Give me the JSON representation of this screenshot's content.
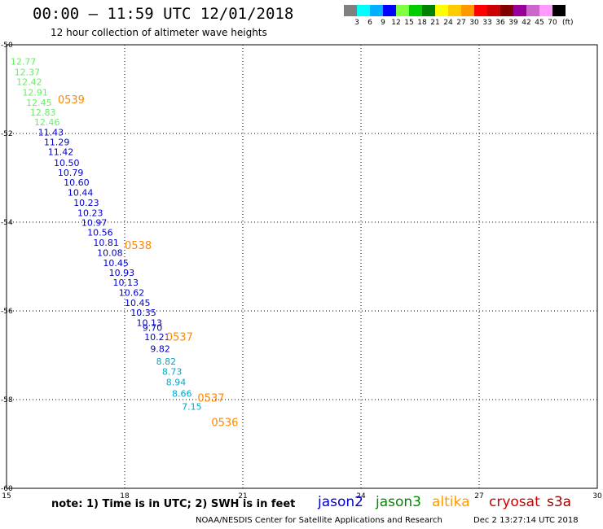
{
  "header": {
    "title": "00:00 – 11:59 UTC 12/01/2018",
    "subtitle": "12 hour collection of altimeter wave heights"
  },
  "legend": {
    "colors": [
      "#808080",
      "#00ffff",
      "#00b0ff",
      "#0000ff",
      "#80ff40",
      "#00cc00",
      "#008000",
      "#ffff00",
      "#ffcc00",
      "#ff9900",
      "#ff0000",
      "#cc0000",
      "#800000",
      "#990099",
      "#cc66cc",
      "#ff99ff",
      "#000000"
    ],
    "labels": [
      "3",
      "6",
      "9",
      "12",
      "15",
      "18",
      "21",
      "24",
      "27",
      "30",
      "33",
      "36",
      "39",
      "42",
      "45",
      "70"
    ],
    "unit": "(ft)"
  },
  "map": {
    "lon_ticks": [
      "15",
      "18",
      "21",
      "24",
      "27",
      "30"
    ],
    "lat_ticks": [
      "-50",
      "-52",
      "-54",
      "-56",
      "-58",
      "-60"
    ],
    "lon_range": [
      15,
      30
    ],
    "lat_range": [
      -60,
      -50
    ]
  },
  "observations": [
    {
      "lon": 15.1,
      "lat": -50.45,
      "text": "12.77",
      "color": "#66ee66"
    },
    {
      "lon": 15.2,
      "lat": -50.69,
      "text": "12.37",
      "color": "#66ee66"
    },
    {
      "lon": 15.25,
      "lat": -50.91,
      "text": "12.42",
      "color": "#66ee66"
    },
    {
      "lon": 15.4,
      "lat": -51.15,
      "text": "12.91",
      "color": "#66ee66"
    },
    {
      "lon": 15.5,
      "lat": -51.38,
      "text": "12.45",
      "color": "#66ee66"
    },
    {
      "lon": 15.6,
      "lat": -51.6,
      "text": "12.83",
      "color": "#66ee66"
    },
    {
      "lon": 15.7,
      "lat": -51.82,
      "text": "12.46",
      "color": "#66ee66"
    },
    {
      "lon": 15.8,
      "lat": -52.05,
      "text": "11.43",
      "color": "#0000cc"
    },
    {
      "lon": 15.95,
      "lat": -52.27,
      "text": "11.29",
      "color": "#0000cc"
    },
    {
      "lon": 16.05,
      "lat": -52.49,
      "text": "11.42",
      "color": "#0000cc"
    },
    {
      "lon": 16.2,
      "lat": -52.73,
      "text": "10.50",
      "color": "#0000cc"
    },
    {
      "lon": 16.3,
      "lat": -52.95,
      "text": "10.79",
      "color": "#0000cc"
    },
    {
      "lon": 16.45,
      "lat": -53.17,
      "text": "10.60",
      "color": "#0000cc"
    },
    {
      "lon": 16.55,
      "lat": -53.4,
      "text": "10.44",
      "color": "#0000cc"
    },
    {
      "lon": 16.7,
      "lat": -53.63,
      "text": "10.23",
      "color": "#0000cc"
    },
    {
      "lon": 16.8,
      "lat": -53.86,
      "text": "10.23",
      "color": "#0000cc"
    },
    {
      "lon": 16.9,
      "lat": -54.08,
      "text": "10.97",
      "color": "#0000cc"
    },
    {
      "lon": 17.05,
      "lat": -54.3,
      "text": "10.56",
      "color": "#0000cc"
    },
    {
      "lon": 17.2,
      "lat": -54.53,
      "text": "10.81",
      "color": "#0000cc"
    },
    {
      "lon": 17.3,
      "lat": -54.76,
      "text": "10.08",
      "color": "#0000cc"
    },
    {
      "lon": 17.45,
      "lat": -54.99,
      "text": "10.45",
      "color": "#0000cc"
    },
    {
      "lon": 17.6,
      "lat": -55.21,
      "text": "10.93",
      "color": "#0000cc"
    },
    {
      "lon": 17.7,
      "lat": -55.43,
      "text": "10.13",
      "color": "#0000cc"
    },
    {
      "lon": 17.85,
      "lat": -55.66,
      "text": "10.62",
      "color": "#0000cc"
    },
    {
      "lon": 18.0,
      "lat": -55.89,
      "text": "10.45",
      "color": "#0000cc"
    },
    {
      "lon": 18.15,
      "lat": -56.11,
      "text": "10.35",
      "color": "#0000cc"
    },
    {
      "lon": 18.3,
      "lat": -56.34,
      "text": "10.13",
      "color": "#0000cc"
    },
    {
      "lon": 18.45,
      "lat": -56.45,
      "text": "9.70",
      "color": "#0000cc"
    },
    {
      "lon": 18.5,
      "lat": -56.66,
      "text": "10.21",
      "color": "#0000cc"
    },
    {
      "lon": 18.65,
      "lat": -56.93,
      "text": "9.82",
      "color": "#0000cc"
    },
    {
      "lon": 18.8,
      "lat": -57.21,
      "text": "8.82",
      "color": "#00aacc"
    },
    {
      "lon": 18.95,
      "lat": -57.44,
      "text": "8.73",
      "color": "#00aacc"
    },
    {
      "lon": 19.05,
      "lat": -57.68,
      "text": "8.94",
      "color": "#00aacc"
    },
    {
      "lon": 19.2,
      "lat": -57.94,
      "text": "8.66",
      "color": "#00aacc"
    },
    {
      "lon": 19.45,
      "lat": -58.23,
      "text": "7.15",
      "color": "#00aacc"
    }
  ],
  "time_labels": [
    {
      "lon": 16.3,
      "lat": -51.32,
      "text": "0539"
    },
    {
      "lon": 18.0,
      "lat": -54.61,
      "text": "0538"
    },
    {
      "lon": 19.05,
      "lat": -56.67,
      "text": "0537"
    },
    {
      "lon": 19.85,
      "lat": -58.05,
      "text": "0537"
    },
    {
      "lon": 20.2,
      "lat": -58.6,
      "text": "0536"
    }
  ],
  "time_label_color": "#ff8800",
  "footer": {
    "note": "note:  1) Time is in UTC;  2) SWH is in feet",
    "satellites": [
      {
        "name": "jason2",
        "color": "#0000cc"
      },
      {
        "name": "jason3",
        "color": "#008800"
      },
      {
        "name": "altika",
        "color": "#ff9900"
      },
      {
        "name": "cryosat",
        "color": "#cc0000"
      },
      {
        "name": "s3a",
        "color": "#990000"
      }
    ],
    "credit": "NOAA/NESDIS Center for Satellite Applications and Research",
    "timestamp": "Dec  2 13:27:14 UTC 2018"
  }
}
